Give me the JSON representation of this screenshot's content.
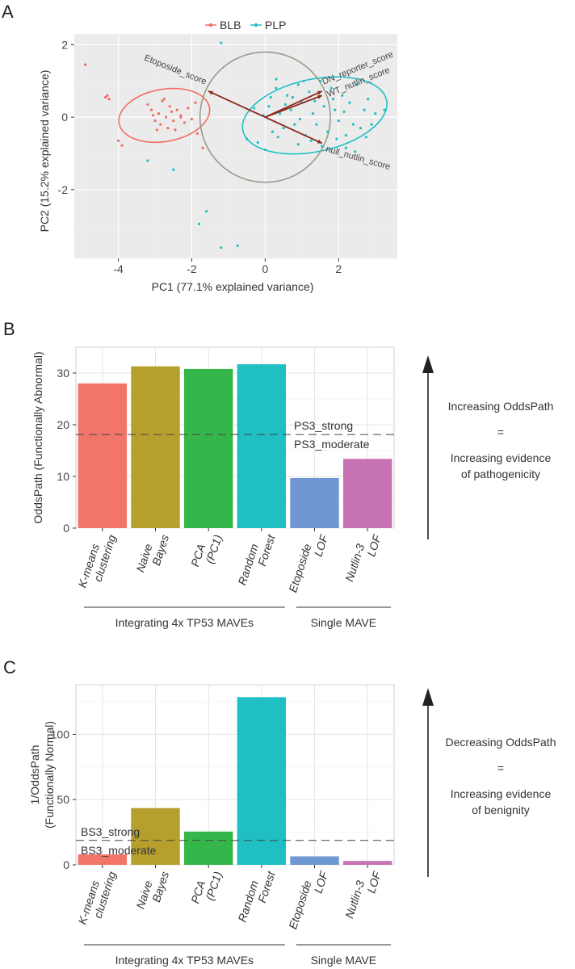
{
  "colors": {
    "blb": "#f26c64",
    "plp": "#1fbfc4",
    "arrow": "#8b2a1f",
    "circle": "#9a9a8e",
    "panel_bg": "#ffffff",
    "grid": "#e6e6e6"
  },
  "chart_data": [
    {
      "panel": "A",
      "type": "scatter",
      "xlabel": "PC1 (77.1% explained variance)",
      "ylabel": "PC2 (15.2% explained variance)",
      "xlim": [
        -5.2,
        3.6
      ],
      "ylim": [
        -3.9,
        2.3
      ],
      "xticks": [
        -4,
        -2,
        0,
        2
      ],
      "yticks": [
        -2,
        0,
        2
      ],
      "legend": [
        {
          "name": "BLB",
          "color": "#f26c64"
        },
        {
          "name": "PLP",
          "color": "#1fbfc4"
        }
      ],
      "series": [
        {
          "name": "BLB",
          "points": [
            [
              -4.9,
              1.45
            ],
            [
              -4.35,
              0.55
            ],
            [
              -4.25,
              0.5
            ],
            [
              -4.3,
              0.6
            ],
            [
              -4.0,
              -0.65
            ],
            [
              -3.9,
              -0.78
            ],
            [
              -3.2,
              0.35
            ],
            [
              -3.1,
              0.2
            ],
            [
              -3.0,
              -0.1
            ],
            [
              -2.9,
              0.1
            ],
            [
              -2.85,
              -0.2
            ],
            [
              -2.8,
              0.45
            ],
            [
              -2.75,
              0.5
            ],
            [
              -2.7,
              0.0
            ],
            [
              -2.65,
              -0.3
            ],
            [
              -2.6,
              0.3
            ],
            [
              -2.55,
              0.15
            ],
            [
              -2.5,
              -0.1
            ],
            [
              -2.45,
              -0.35
            ],
            [
              -2.4,
              0.2
            ],
            [
              -2.3,
              0.05
            ],
            [
              -2.2,
              -0.15
            ],
            [
              -2.1,
              0.25
            ],
            [
              -2.0,
              -0.05
            ],
            [
              -1.9,
              0.4
            ],
            [
              -1.85,
              -0.45
            ],
            [
              -1.7,
              -0.85
            ],
            [
              -2.3,
              0.0
            ],
            [
              -3.05,
              0.05
            ],
            [
              -2.95,
              -0.35
            ]
          ]
        },
        {
          "name": "PLP",
          "points": [
            [
              -1.2,
              2.05
            ],
            [
              -3.2,
              -1.2
            ],
            [
              -2.5,
              -1.45
            ],
            [
              -1.6,
              -2.6
            ],
            [
              -1.8,
              -2.95
            ],
            [
              -0.75,
              -3.55
            ],
            [
              -1.2,
              -3.6
            ],
            [
              -0.5,
              -0.6
            ],
            [
              -0.3,
              0.25
            ],
            [
              -0.2,
              -0.7
            ],
            [
              0.1,
              0.3
            ],
            [
              0.2,
              -0.4
            ],
            [
              0.3,
              0.8
            ],
            [
              0.4,
              0.1
            ],
            [
              0.5,
              -0.3
            ],
            [
              0.6,
              0.6
            ],
            [
              0.7,
              0.2
            ],
            [
              0.8,
              -0.2
            ],
            [
              0.9,
              0.9
            ],
            [
              1.0,
              0.4
            ],
            [
              1.1,
              -0.5
            ],
            [
              1.2,
              0.7
            ],
            [
              1.3,
              0.1
            ],
            [
              1.4,
              -0.2
            ],
            [
              1.5,
              1.0
            ],
            [
              1.6,
              0.3
            ],
            [
              1.7,
              -0.4
            ],
            [
              1.8,
              0.8
            ],
            [
              1.9,
              0.2
            ],
            [
              2.0,
              -0.1
            ],
            [
              2.1,
              0.6
            ],
            [
              2.2,
              -0.5
            ],
            [
              2.3,
              0.4
            ],
            [
              2.4,
              -0.2
            ],
            [
              2.5,
              0.9
            ],
            [
              2.6,
              -0.3
            ],
            [
              2.7,
              0.2
            ],
            [
              2.8,
              0.5
            ],
            [
              2.9,
              -0.2
            ],
            [
              3.0,
              0.1
            ],
            [
              3.25,
              0.2
            ],
            [
              2.45,
              -0.95
            ],
            [
              2.2,
              -0.85
            ],
            [
              1.55,
              -0.8
            ],
            [
              0.9,
              -0.75
            ],
            [
              0.0,
              -0.9
            ],
            [
              0.3,
              1.05
            ],
            [
              1.05,
              1.0
            ],
            [
              0.75,
              0.55
            ],
            [
              1.35,
              0.45
            ],
            [
              0.55,
              0.35
            ],
            [
              1.85,
              0.5
            ],
            [
              2.15,
              0.15
            ],
            [
              0.35,
              -0.55
            ],
            [
              1.25,
              -0.65
            ],
            [
              1.95,
              -0.6
            ],
            [
              2.75,
              -0.55
            ],
            [
              0.15,
              0.55
            ],
            [
              -0.05,
              0.05
            ],
            [
              0.95,
              -0.05
            ]
          ]
        }
      ],
      "ellipses": [
        {
          "name": "BLB",
          "center": [
            -2.75,
            0.05
          ],
          "rx": 1.25,
          "ry": 0.72,
          "rotation_deg": 10
        },
        {
          "name": "PLP",
          "center": [
            1.35,
            0.05
          ],
          "rx": 2.0,
          "ry": 1.0,
          "rotation_deg": 12
        }
      ],
      "circle": {
        "center": [
          0.0,
          0.0
        ],
        "r": 1.8
      },
      "loadings": [
        {
          "label": "Etoposide_score",
          "x": -1.55,
          "y": 0.72
        },
        {
          "label": "DN_reporter_score",
          "x": 1.55,
          "y": 0.72
        },
        {
          "label": "WT_nutlin_score",
          "x": 1.55,
          "y": 0.6
        },
        {
          "label": "null_nutlin_score",
          "x": 1.55,
          "y": -0.72
        }
      ]
    },
    {
      "panel": "B",
      "type": "bar",
      "ylabel": "OddsPath (Functionally Abnormal)",
      "ylim": [
        0,
        35
      ],
      "yticks": [
        0,
        10,
        20,
        30
      ],
      "categories": [
        "K-means clustering",
        "Naive Bayes",
        "PCA (PC1)",
        "Random Forest",
        "Etoposide LOF",
        "Nutlin-3 LOF"
      ],
      "category_lines": [
        [
          "K-means",
          "clustering"
        ],
        [
          "Naive",
          "Bayes"
        ],
        [
          "PCA",
          "(PC1)"
        ],
        [
          "Random",
          "Forest"
        ],
        [
          "Etoposide",
          "LOF"
        ],
        [
          "Nutlin-3",
          "LOF"
        ]
      ],
      "values": [
        28,
        31.3,
        30.8,
        31.7,
        9.7,
        13.4
      ],
      "colors": [
        "#f2756a",
        "#b79f2e",
        "#35b64a",
        "#1fbfc4",
        "#6f97d2",
        "#c873b5"
      ],
      "threshold": {
        "value": 18.1,
        "label_above": "PS3_strong",
        "label_below": "PS3_moderate"
      },
      "groups": [
        {
          "label": "Integrating 4x TP53  MAVEs",
          "from": 0,
          "to": 3
        },
        {
          "label": "Single MAVE",
          "from": 4,
          "to": 5
        }
      ],
      "side_text": {
        "title": "Increasing OddsPath",
        "eq": "=",
        "line1": "Increasing evidence",
        "line2": "of pathogenicity"
      }
    },
    {
      "panel": "C",
      "type": "bar",
      "ylabel": [
        "1/OddsPath",
        "(Functionally Normal)"
      ],
      "ylim": [
        0,
        138
      ],
      "yticks": [
        0,
        50,
        100
      ],
      "categories": [
        "K-means clustering",
        "Naive Bayes",
        "PCA (PC1)",
        "Random Forest",
        "Etoposide LOF",
        "Nutlin-3 LOF"
      ],
      "category_lines": [
        [
          "K-means",
          "clustering"
        ],
        [
          "Naive",
          "Bayes"
        ],
        [
          "PCA",
          "(PC1)"
        ],
        [
          "Random",
          "Forest"
        ],
        [
          "Etoposide",
          "LOF"
        ],
        [
          "Nutlin-3",
          "LOF"
        ]
      ],
      "values": [
        8,
        43.5,
        25.5,
        128.5,
        6.5,
        3
      ],
      "colors": [
        "#f2756a",
        "#b79f2e",
        "#35b64a",
        "#1fbfc4",
        "#6f97d2",
        "#c873b5"
      ],
      "threshold": {
        "value": 18.7,
        "label_above": "BS3_strong",
        "label_below": "BS3_moderate"
      },
      "groups": [
        {
          "label": "Integrating 4x TP53  MAVEs",
          "from": 0,
          "to": 3
        },
        {
          "label": "Single MAVE",
          "from": 4,
          "to": 5
        }
      ],
      "side_text": {
        "title": "Decreasing OddsPath",
        "eq": "=",
        "line1": "Increasing evidence",
        "line2": "of benignity"
      }
    }
  ]
}
